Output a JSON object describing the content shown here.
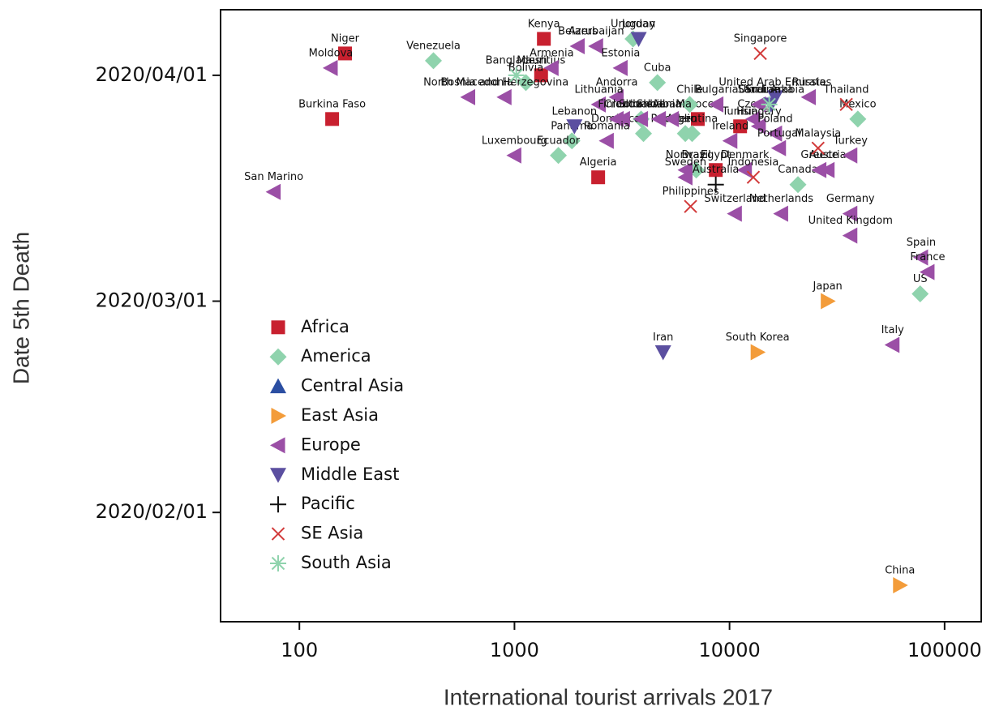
{
  "chart_data": {
    "type": "scatter",
    "xlabel": "International tourist arrivals 2017",
    "ylabel": "Date 5th Death",
    "xscale": "log",
    "xlim": [
      43,
      148000
    ],
    "xticks": [
      100,
      1000,
      10000,
      100000
    ],
    "ylim": [
      "2020/01/17",
      "2020/04/10"
    ],
    "yticks": [
      "2020/02/01",
      "2020/03/01",
      "2020/04/01"
    ],
    "legend": "lower left",
    "series": [
      {
        "name": "Africa",
        "color": "#c8202f",
        "marker": "square",
        "labels": [
          "Niger",
          "Kenya",
          "Burkina Faso",
          "Mauritius",
          "Algeria",
          "Morocco",
          "Tunisia",
          "Egypt"
        ],
        "x": [
          163,
          1370,
          142,
          1330,
          2450,
          7120,
          11200,
          8630
        ],
        "values": [
          "2020/04/04",
          "2020/04/06",
          "2020/03/26",
          "2020/04/01",
          "2020/03/18",
          "2020/03/26",
          "2020/03/25",
          "2020/03/19"
        ]
      },
      {
        "name": "America",
        "color": "#8fd3ad",
        "marker": "diamond",
        "labels": [
          "Venezuela",
          "Uruguay",
          "Bolivia",
          "Cuba",
          "Chile",
          "Colombia",
          "Panama",
          "Ecuador",
          "Dominican Republic",
          "Peru",
          "Argentina",
          "Brazil",
          "Mexico",
          "Canada",
          "US"
        ],
        "x": [
          420,
          3560,
          1130,
          4620,
          6530,
          3880,
          1850,
          1600,
          3980,
          6230,
          6700,
          7000,
          39500,
          20800,
          77000
        ],
        "values": [
          "2020/04/03",
          "2020/04/06",
          "2020/03/31",
          "2020/03/31",
          "2020/03/28",
          "2020/03/26",
          "2020/03/23",
          "2020/03/21",
          "2020/03/24",
          "2020/03/24",
          "2020/03/24",
          "2020/03/19",
          "2020/03/26",
          "2020/03/17",
          "2020/03/02"
        ]
      },
      {
        "name": "Central Asia",
        "color": "#2b4ea2",
        "marker": "triangle-up",
        "labels": [],
        "x": [],
        "values": []
      },
      {
        "name": "East Asia",
        "color": "#f39c3a",
        "marker": "triangle-right",
        "labels": [
          "Japan",
          "South Korea",
          "China"
        ],
        "x": [
          28600,
          13500,
          62000
        ],
        "values": [
          "2020/03/01",
          "2020/02/23",
          "2020/01/22"
        ]
      },
      {
        "name": "Europe",
        "color": "#9b4fa6",
        "marker": "triangle-left",
        "labels": [
          "San Marino",
          "Moldova",
          "North Macedonia",
          "Bosnia and Herzegovina",
          "Armenia",
          "Belarus",
          "Azerbaijan",
          "Estonia",
          "Andorra",
          "Lithuania",
          "Finland",
          "Croatia",
          "Slovakia",
          "Slovenia",
          "Albania",
          "Romania",
          "Luxembourg",
          "Ireland",
          "Czech",
          "Bulgaria",
          "Ukraine",
          "Russia",
          "Hungary",
          "Poland",
          "Portugal",
          "Greece",
          "Austria",
          "Turkey",
          "Denmark",
          "Norway",
          "Sweden",
          "Switzerland",
          "Netherlands",
          "Germany",
          "United Kingdom",
          "Spain",
          "France",
          "Italy"
        ],
        "x": [
          76,
          140,
          610,
          900,
          1490,
          1970,
          2400,
          3120,
          2990,
          2470,
          2990,
          3200,
          3880,
          4700,
          5400,
          2690,
          1000,
          10100,
          12900,
          8700,
          13700,
          23400,
          13700,
          16300,
          17000,
          26200,
          28600,
          36500,
          11800,
          6250,
          6250,
          10600,
          17400,
          36500,
          36500,
          77800,
          83400,
          57300
        ],
        "values": [
          "2020/03/16",
          "2020/04/02",
          "2020/03/29",
          "2020/03/29",
          "2020/04/02",
          "2020/04/05",
          "2020/04/05",
          "2020/04/02",
          "2020/03/29",
          "2020/03/28",
          "2020/03/26",
          "2020/03/26",
          "2020/03/26",
          "2020/03/26",
          "2020/03/26",
          "2020/03/23",
          "2020/03/21",
          "2020/03/23",
          "2020/03/26",
          "2020/03/28",
          "2020/03/28",
          "2020/03/29",
          "2020/03/25",
          "2020/03/24",
          "2020/03/22",
          "2020/03/19",
          "2020/03/19",
          "2020/03/21",
          "2020/03/19",
          "2020/03/19",
          "2020/03/18",
          "2020/03/13",
          "2020/03/13",
          "2020/03/13",
          "2020/03/10",
          "2020/03/07",
          "2020/03/05",
          "2020/02/24"
        ]
      },
      {
        "name": "Middle East",
        "color": "#5b4fa0",
        "marker": "triangle-down",
        "labels": [
          "Jordan",
          "Lebanon",
          "United Arab Emirates",
          "Saudi Arabia",
          "Iran"
        ],
        "x": [
          3780,
          1900,
          16300,
          15600,
          4910
        ],
        "values": [
          "2020/04/06",
          "2020/03/25",
          "2020/03/29",
          "2020/03/28",
          "2020/02/23"
        ]
      },
      {
        "name": "Pacific",
        "color": "#111111",
        "marker": "plus",
        "labels": [
          "Australia"
        ],
        "x": [
          8630
        ],
        "values": [
          "2020/03/17"
        ]
      },
      {
        "name": "SE Asia",
        "color": "#d23a3a",
        "marker": "x",
        "labels": [
          "Singapore",
          "Thailand",
          "Malaysia",
          "Indonesia",
          "Philippines"
        ],
        "x": [
          13900,
          34900,
          25800,
          12900,
          6590
        ],
        "values": [
          "2020/04/04",
          "2020/03/28",
          "2020/03/22",
          "2020/03/18",
          "2020/03/14"
        ]
      },
      {
        "name": "South Asia",
        "color": "#8fd3ad",
        "marker": "asterisk",
        "labels": [
          "Bangladesh",
          "Sri Lanka"
        ],
        "x": [
          1020,
          15300
        ],
        "values": [
          "2020/04/01",
          "2020/03/28"
        ]
      }
    ]
  }
}
